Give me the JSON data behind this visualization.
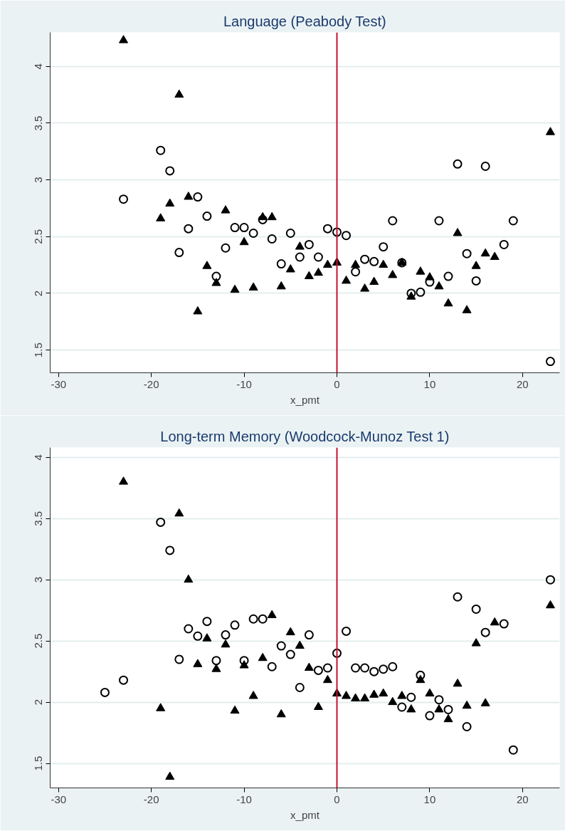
{
  "chart_data": [
    {
      "type": "scatter",
      "title": "Language (Peabody Test)",
      "xlabel": "x_pmt",
      "xlim": [
        -30.9,
        24
      ],
      "ylim": [
        1.3,
        4.3
      ],
      "xticks": [
        -30,
        -20,
        -10,
        0,
        10,
        20
      ],
      "yticks": [
        1.5,
        2,
        2.5,
        3,
        3.5,
        4
      ],
      "grid": "y",
      "ref_lines": [
        {
          "axis": "x",
          "value": 0,
          "color": "#c8102e"
        }
      ],
      "series": [
        {
          "color": "#000000",
          "marker": "circle",
          "x": [
            -23,
            -19,
            -18,
            -17,
            -16,
            -15,
            -14,
            -13,
            -12,
            -11,
            -10,
            -9,
            -8,
            -7,
            -6,
            -5,
            -4,
            -3,
            -2,
            -1,
            0,
            1,
            2,
            3,
            4,
            5,
            6,
            7,
            8,
            9,
            10,
            11,
            12,
            13,
            14,
            15,
            16,
            18,
            19,
            23
          ],
          "values": [
            2.83,
            3.26,
            3.08,
            2.36,
            2.57,
            2.85,
            2.68,
            2.15,
            2.4,
            2.58,
            2.58,
            2.53,
            2.65,
            2.48,
            2.26,
            2.53,
            2.32,
            2.43,
            2.32,
            2.57,
            2.54,
            2.51,
            2.19,
            2.3,
            2.28,
            2.41,
            2.64,
            2.27,
            2.0,
            2.01,
            2.1,
            2.64,
            2.15,
            3.14,
            2.35,
            2.11,
            3.12,
            2.43,
            2.64,
            1.4
          ]
        },
        {
          "color": "#000000",
          "marker": "triangle",
          "x": [
            -23,
            -19,
            -18,
            -17,
            -16,
            -15,
            -14,
            -13,
            -12,
            -11,
            -10,
            -9,
            -8,
            -7,
            -6,
            -5,
            -4,
            -3,
            -2,
            -1,
            0,
            1,
            2,
            3,
            4,
            5,
            6,
            7,
            8,
            9,
            10,
            11,
            12,
            13,
            14,
            15,
            16,
            17,
            23
          ],
          "values": [
            4.23,
            2.66,
            2.79,
            3.75,
            2.85,
            1.84,
            2.24,
            2.09,
            2.73,
            2.03,
            2.45,
            2.05,
            2.67,
            2.67,
            2.06,
            2.21,
            2.41,
            2.15,
            2.18,
            2.25,
            2.27,
            2.11,
            2.25,
            2.04,
            2.1,
            2.25,
            2.16,
            2.27,
            1.97,
            2.19,
            2.14,
            2.06,
            1.91,
            2.53,
            1.85,
            2.24,
            2.35,
            2.32,
            3.42
          ]
        }
      ]
    },
    {
      "type": "scatter",
      "title": "Long-term Memory (Woodcock-Munoz Test 1)",
      "xlabel": "x_pmt",
      "xlim": [
        -30.9,
        24
      ],
      "ylim": [
        1.3,
        4.08
      ],
      "xticks": [
        -30,
        -20,
        -10,
        0,
        10,
        20
      ],
      "yticks": [
        1.5,
        2,
        2.5,
        3,
        3.5,
        4
      ],
      "grid": "y",
      "ref_lines": [
        {
          "axis": "x",
          "value": 0,
          "color": "#c8102e"
        }
      ],
      "series": [
        {
          "color": "#000000",
          "marker": "circle",
          "x": [
            -25,
            -23,
            -19,
            -18,
            -17,
            -16,
            -15,
            -14,
            -13,
            -12,
            -11,
            -10,
            -9,
            -8,
            -7,
            -6,
            -5,
            -4,
            -3,
            -2,
            -1,
            0,
            1,
            2,
            3,
            4,
            5,
            6,
            7,
            8,
            9,
            10,
            11,
            12,
            13,
            14,
            15,
            16,
            18,
            19,
            23
          ],
          "values": [
            2.08,
            2.18,
            3.47,
            3.24,
            2.35,
            2.6,
            2.54,
            2.66,
            2.34,
            2.55,
            2.63,
            2.34,
            2.68,
            2.68,
            2.29,
            2.46,
            2.39,
            2.12,
            2.55,
            2.26,
            2.28,
            2.4,
            2.58,
            2.28,
            2.28,
            2.25,
            2.27,
            2.29,
            1.96,
            2.04,
            2.22,
            1.89,
            2.02,
            1.94,
            2.86,
            1.8,
            2.76,
            2.57,
            2.64,
            1.61,
            3.0
          ]
        },
        {
          "color": "#000000",
          "marker": "triangle",
          "x": [
            -23,
            -19,
            -18,
            -17,
            -16,
            -15,
            -14,
            -13,
            -12,
            -11,
            -10,
            -9,
            -8,
            -7,
            -6,
            -5,
            -4,
            -3,
            -2,
            -1,
            0,
            1,
            2,
            3,
            4,
            5,
            6,
            7,
            8,
            9,
            10,
            11,
            12,
            13,
            14,
            15,
            16,
            17,
            23
          ],
          "values": [
            3.8,
            1.95,
            1.39,
            3.54,
            3.0,
            2.31,
            2.52,
            2.27,
            2.47,
            1.93,
            2.3,
            2.05,
            2.36,
            2.71,
            1.9,
            2.57,
            2.46,
            2.28,
            1.96,
            2.18,
            2.07,
            2.05,
            2.03,
            2.03,
            2.06,
            2.07,
            2.0,
            2.05,
            1.94,
            2.18,
            2.07,
            1.94,
            1.86,
            2.15,
            1.97,
            2.48,
            1.99,
            2.65,
            2.79
          ]
        }
      ]
    }
  ]
}
